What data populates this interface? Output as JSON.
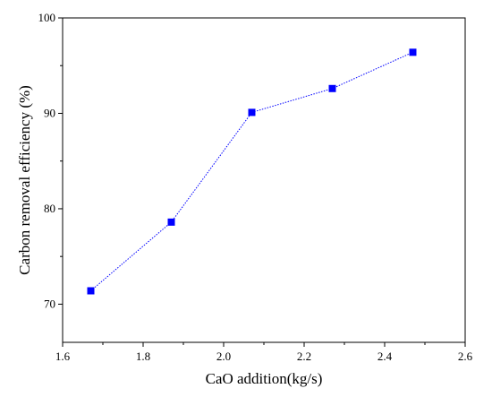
{
  "chart_data": {
    "type": "line",
    "title": "",
    "xlabel": "CaO addition(kg/s)",
    "ylabel": "Carbon removal efficiency (%)",
    "xlim": [
      1.6,
      2.6
    ],
    "ylim": [
      66,
      100
    ],
    "x_ticks": [
      "1.6",
      "1.8",
      "2.0",
      "2.2",
      "2.4",
      "2.6"
    ],
    "y_ticks": [
      "70",
      "80",
      "90",
      "100"
    ],
    "grid": false,
    "legend": "none",
    "series": [
      {
        "x": [
          1.67,
          1.87,
          2.07,
          2.27,
          2.47
        ],
        "y": [
          71.4,
          78.6,
          90.1,
          92.6,
          96.4
        ],
        "marker": "square",
        "color": "#0000ff",
        "line_style": "dotted"
      }
    ]
  }
}
